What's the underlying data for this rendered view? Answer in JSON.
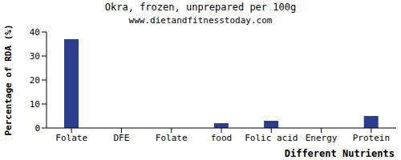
{
  "chart_data": {
    "type": "bar",
    "title": "Okra, frozen, unprepared per 100g",
    "subtitle": "www.dietandfitnesstoday.com",
    "x_label": "Different Nutrients",
    "y_label": "Percentage of RDA (%)",
    "categories": [
      "Folate",
      "DFE",
      "Folate",
      "food",
      "Folic acid",
      "Energy",
      "Protein"
    ],
    "values": [
      37,
      0,
      0,
      2,
      3,
      0,
      5
    ],
    "color": "#2b3f8e",
    "ylim": [
      0,
      40
    ],
    "yticks": [
      0,
      10,
      20,
      30,
      40
    ],
    "grid": false
  }
}
